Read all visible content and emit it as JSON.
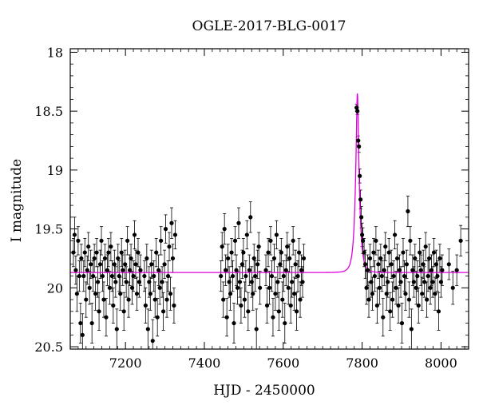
{
  "chart_data": {
    "type": "scatter",
    "title": "OGLE-2017-BLG-0017",
    "xlabel": "HJD - 2450000",
    "ylabel": "I magnitude",
    "xlim": [
      7060,
      8070
    ],
    "ylim": [
      20.52,
      17.97
    ],
    "y_inverted": true,
    "xticks": [
      7200,
      7400,
      7600,
      7800,
      8000
    ],
    "yticks": [
      18,
      18.5,
      19,
      19.5,
      20,
      20.5
    ],
    "xtick_labels": [
      "7200",
      "7400",
      "7600",
      "7800",
      "8000"
    ],
    "ytick_labels": [
      "18",
      "18.5",
      "19",
      "19.5",
      "20",
      "20.5"
    ],
    "grid": false,
    "legend": "none",
    "series": [
      {
        "kind": "points_with_errorbars",
        "color": "#000000",
        "data": [
          [
            7068,
            19.7,
            0.12
          ],
          [
            7071,
            19.55,
            0.15
          ],
          [
            7074,
            19.85,
            0.12
          ],
          [
            7077,
            20.05,
            0.15
          ],
          [
            7080,
            19.6,
            0.12
          ],
          [
            7083,
            19.9,
            0.13
          ],
          [
            7086,
            20.3,
            0.17
          ],
          [
            7088,
            19.75,
            0.12
          ],
          [
            7091,
            20.4,
            0.18
          ],
          [
            7094,
            19.9,
            0.13
          ],
          [
            7097,
            19.7,
            0.12
          ],
          [
            7100,
            20.1,
            0.15
          ],
          [
            7103,
            19.85,
            0.12
          ],
          [
            7106,
            19.65,
            0.12
          ],
          [
            7109,
            20.0,
            0.14
          ],
          [
            7112,
            19.8,
            0.12
          ],
          [
            7115,
            20.3,
            0.17
          ],
          [
            7118,
            19.9,
            0.13
          ],
          [
            7121,
            19.75,
            0.12
          ],
          [
            7124,
            20.05,
            0.14
          ],
          [
            7127,
            19.7,
            0.12
          ],
          [
            7130,
            19.95,
            0.13
          ],
          [
            7133,
            20.2,
            0.16
          ],
          [
            7136,
            19.8,
            0.12
          ],
          [
            7139,
            19.6,
            0.12
          ],
          [
            7142,
            19.9,
            0.13
          ],
          [
            7145,
            20.1,
            0.15
          ],
          [
            7148,
            19.75,
            0.12
          ],
          [
            7151,
            20.25,
            0.16
          ],
          [
            7154,
            19.85,
            0.13
          ],
          [
            7157,
            19.7,
            0.12
          ],
          [
            7160,
            20.0,
            0.14
          ],
          [
            7163,
            19.65,
            0.12
          ],
          [
            7166,
            19.9,
            0.13
          ],
          [
            7169,
            20.15,
            0.15
          ],
          [
            7172,
            19.8,
            0.12
          ],
          [
            7175,
            19.95,
            0.13
          ],
          [
            7178,
            20.35,
            0.17
          ],
          [
            7181,
            19.75,
            0.12
          ],
          [
            7184,
            19.9,
            0.13
          ],
          [
            7187,
            20.05,
            0.14
          ],
          [
            7190,
            19.7,
            0.12
          ],
          [
            7193,
            19.85,
            0.13
          ],
          [
            7196,
            20.2,
            0.16
          ],
          [
            7199,
            19.8,
            0.12
          ],
          [
            7202,
            19.95,
            0.13
          ],
          [
            7205,
            19.6,
            0.12
          ],
          [
            7208,
            20.1,
            0.15
          ],
          [
            7211,
            19.85,
            0.13
          ],
          [
            7214,
            19.75,
            0.12
          ],
          [
            7217,
            20.0,
            0.14
          ],
          [
            7220,
            19.9,
            0.13
          ],
          [
            7223,
            19.55,
            0.12
          ],
          [
            7226,
            19.8,
            0.12
          ],
          [
            7229,
            20.05,
            0.14
          ],
          [
            7232,
            19.7,
            0.12
          ],
          [
            7235,
            19.95,
            0.13
          ],
          [
            7238,
            19.85,
            0.13
          ],
          [
            7248,
            19.9,
            0.13
          ],
          [
            7251,
            20.15,
            0.15
          ],
          [
            7254,
            19.75,
            0.12
          ],
          [
            7257,
            20.35,
            0.17
          ],
          [
            7260,
            19.95,
            0.13
          ],
          [
            7263,
            20.05,
            0.14
          ],
          [
            7266,
            19.8,
            0.12
          ],
          [
            7269,
            20.45,
            0.18
          ],
          [
            7272,
            19.9,
            0.13
          ],
          [
            7275,
            20.1,
            0.15
          ],
          [
            7278,
            19.7,
            0.12
          ],
          [
            7281,
            20.25,
            0.16
          ],
          [
            7284,
            19.85,
            0.13
          ],
          [
            7287,
            20.0,
            0.14
          ],
          [
            7290,
            19.6,
            0.12
          ],
          [
            7293,
            19.95,
            0.13
          ],
          [
            7296,
            20.2,
            0.16
          ],
          [
            7299,
            19.8,
            0.12
          ],
          [
            7302,
            19.5,
            0.12
          ],
          [
            7305,
            20.1,
            0.15
          ],
          [
            7308,
            19.9,
            0.13
          ],
          [
            7311,
            19.65,
            0.12
          ],
          [
            7314,
            20.05,
            0.14
          ],
          [
            7317,
            19.45,
            0.13
          ],
          [
            7320,
            19.75,
            0.12
          ],
          [
            7323,
            20.15,
            0.15
          ],
          [
            7326,
            19.55,
            0.12
          ],
          [
            7442,
            19.9,
            0.13
          ],
          [
            7445,
            19.65,
            0.12
          ],
          [
            7448,
            20.1,
            0.15
          ],
          [
            7451,
            19.5,
            0.13
          ],
          [
            7454,
            19.85,
            0.13
          ],
          [
            7457,
            20.25,
            0.16
          ],
          [
            7460,
            19.75,
            0.12
          ],
          [
            7463,
            19.95,
            0.13
          ],
          [
            7466,
            20.05,
            0.14
          ],
          [
            7469,
            19.7,
            0.12
          ],
          [
            7472,
            19.9,
            0.13
          ],
          [
            7475,
            20.3,
            0.17
          ],
          [
            7478,
            19.6,
            0.12
          ],
          [
            7481,
            19.85,
            0.13
          ],
          [
            7484,
            20.0,
            0.14
          ],
          [
            7487,
            19.45,
            0.13
          ],
          [
            7490,
            19.95,
            0.13
          ],
          [
            7493,
            20.15,
            0.15
          ],
          [
            7496,
            19.8,
            0.12
          ],
          [
            7499,
            19.7,
            0.12
          ],
          [
            7502,
            20.1,
            0.15
          ],
          [
            7505,
            19.9,
            0.13
          ],
          [
            7508,
            19.55,
            0.12
          ],
          [
            7511,
            20.2,
            0.16
          ],
          [
            7514,
            19.85,
            0.13
          ],
          [
            7517,
            19.4,
            0.13
          ],
          [
            7520,
            19.95,
            0.13
          ],
          [
            7523,
            20.05,
            0.14
          ],
          [
            7526,
            19.75,
            0.12
          ],
          [
            7529,
            19.9,
            0.13
          ],
          [
            7532,
            20.35,
            0.17
          ],
          [
            7535,
            19.8,
            0.12
          ],
          [
            7538,
            19.65,
            0.12
          ],
          [
            7541,
            20.0,
            0.14
          ],
          [
            7556,
            19.85,
            0.13
          ],
          [
            7559,
            20.15,
            0.15
          ],
          [
            7562,
            19.7,
            0.12
          ],
          [
            7565,
            20.0,
            0.14
          ],
          [
            7568,
            19.6,
            0.12
          ],
          [
            7571,
            19.9,
            0.13
          ],
          [
            7574,
            20.25,
            0.16
          ],
          [
            7577,
            19.75,
            0.12
          ],
          [
            7580,
            20.05,
            0.14
          ],
          [
            7583,
            19.55,
            0.12
          ],
          [
            7586,
            19.95,
            0.13
          ],
          [
            7589,
            20.2,
            0.16
          ],
          [
            7592,
            19.8,
            0.12
          ],
          [
            7595,
            19.7,
            0.12
          ],
          [
            7598,
            20.1,
            0.15
          ],
          [
            7601,
            19.9,
            0.13
          ],
          [
            7604,
            20.3,
            0.17
          ],
          [
            7607,
            19.85,
            0.13
          ],
          [
            7610,
            19.65,
            0.12
          ],
          [
            7613,
            20.0,
            0.14
          ],
          [
            7616,
            19.75,
            0.12
          ],
          [
            7619,
            20.15,
            0.15
          ],
          [
            7622,
            19.95,
            0.13
          ],
          [
            7625,
            19.6,
            0.12
          ],
          [
            7628,
            20.05,
            0.14
          ],
          [
            7631,
            19.8,
            0.12
          ],
          [
            7634,
            20.2,
            0.16
          ],
          [
            7637,
            19.9,
            0.13
          ],
          [
            7640,
            19.7,
            0.12
          ],
          [
            7643,
            20.1,
            0.15
          ],
          [
            7646,
            19.85,
            0.13
          ],
          [
            7649,
            19.95,
            0.13
          ],
          [
            7652,
            19.75,
            0.12
          ],
          [
            7786,
            18.47,
            0.03
          ],
          [
            7788,
            18.5,
            0.03
          ],
          [
            7790,
            18.75,
            0.04
          ],
          [
            7792,
            18.8,
            0.05
          ],
          [
            7794,
            19.05,
            0.06
          ],
          [
            7796,
            19.25,
            0.08
          ],
          [
            7798,
            19.4,
            0.09
          ],
          [
            7800,
            19.55,
            0.1
          ],
          [
            7802,
            19.6,
            0.11
          ],
          [
            7805,
            19.7,
            0.12
          ],
          [
            7808,
            19.8,
            0.12
          ],
          [
            7811,
            20.0,
            0.14
          ],
          [
            7814,
            19.85,
            0.13
          ],
          [
            7817,
            20.1,
            0.15
          ],
          [
            7820,
            19.75,
            0.12
          ],
          [
            7823,
            19.95,
            0.13
          ],
          [
            7826,
            20.05,
            0.14
          ],
          [
            7829,
            19.7,
            0.12
          ],
          [
            7832,
            19.9,
            0.13
          ],
          [
            7835,
            19.6,
            0.12
          ],
          [
            7838,
            20.15,
            0.15
          ],
          [
            7841,
            19.8,
            0.12
          ],
          [
            7844,
            20.0,
            0.14
          ],
          [
            7847,
            19.75,
            0.12
          ],
          [
            7850,
            19.9,
            0.13
          ],
          [
            7853,
            20.25,
            0.16
          ],
          [
            7856,
            19.85,
            0.13
          ],
          [
            7859,
            19.65,
            0.12
          ],
          [
            7862,
            20.05,
            0.14
          ],
          [
            7865,
            19.95,
            0.13
          ],
          [
            7868,
            19.7,
            0.12
          ],
          [
            7871,
            20.2,
            0.16
          ],
          [
            7874,
            19.8,
            0.12
          ],
          [
            7877,
            20.1,
            0.15
          ],
          [
            7880,
            19.9,
            0.13
          ],
          [
            7883,
            19.55,
            0.12
          ],
          [
            7886,
            20.0,
            0.14
          ],
          [
            7889,
            19.75,
            0.12
          ],
          [
            7892,
            20.15,
            0.15
          ],
          [
            7895,
            19.85,
            0.13
          ],
          [
            7898,
            19.95,
            0.13
          ],
          [
            7901,
            20.3,
            0.17
          ],
          [
            7904,
            19.7,
            0.12
          ],
          [
            7907,
            19.9,
            0.13
          ],
          [
            7910,
            20.05,
            0.14
          ],
          [
            7913,
            19.8,
            0.12
          ],
          [
            7916,
            19.35,
            0.13
          ],
          [
            7919,
            20.1,
            0.15
          ],
          [
            7922,
            19.6,
            0.12
          ],
          [
            7925,
            20.35,
            0.17
          ],
          [
            7928,
            19.85,
            0.13
          ],
          [
            7931,
            19.95,
            0.13
          ],
          [
            7934,
            19.75,
            0.12
          ],
          [
            7937,
            20.0,
            0.14
          ],
          [
            7940,
            19.9,
            0.13
          ],
          [
            7943,
            20.15,
            0.15
          ],
          [
            7946,
            19.7,
            0.12
          ],
          [
            7949,
            19.85,
            0.13
          ],
          [
            7952,
            20.05,
            0.14
          ],
          [
            7955,
            19.8,
            0.12
          ],
          [
            7958,
            19.95,
            0.13
          ],
          [
            7961,
            19.65,
            0.12
          ],
          [
            7964,
            20.1,
            0.15
          ],
          [
            7967,
            19.9,
            0.13
          ],
          [
            7970,
            19.75,
            0.12
          ],
          [
            7973,
            20.0,
            0.14
          ],
          [
            7976,
            19.85,
            0.13
          ],
          [
            7979,
            19.95,
            0.13
          ],
          [
            7982,
            19.7,
            0.12
          ],
          [
            7985,
            20.05,
            0.14
          ],
          [
            7988,
            19.8,
            0.12
          ],
          [
            7991,
            19.9,
            0.13
          ],
          [
            7994,
            20.2,
            0.16
          ],
          [
            7997,
            19.75,
            0.12
          ],
          [
            8000,
            19.95,
            0.13
          ],
          [
            8003,
            19.85,
            0.13
          ],
          [
            8020,
            19.8,
            0.13
          ],
          [
            8030,
            20.0,
            0.14
          ],
          [
            8040,
            19.85,
            0.13
          ],
          [
            8050,
            19.6,
            0.13
          ]
        ]
      },
      {
        "kind": "model_curve",
        "color": "#dd00dd",
        "baseline": 19.87,
        "peak_mag": 18.35,
        "t0": 7788,
        "tE": 10
      }
    ]
  }
}
